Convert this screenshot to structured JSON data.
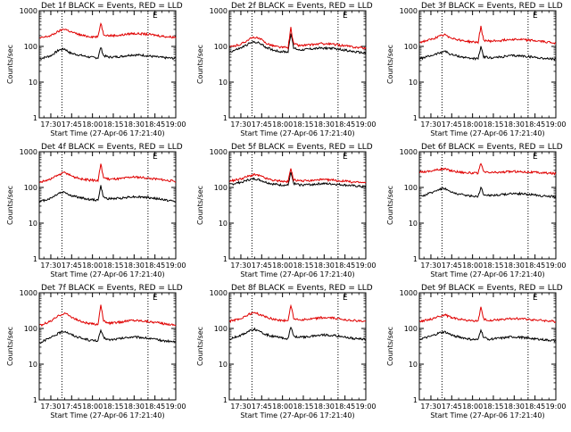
{
  "chart_data": [
    {
      "type": "line",
      "title": "Det 1f BLACK = Events, RED = LLD",
      "flag": "E",
      "ylabel": "Counts/sec",
      "xlabel": "Start Time (27-Apr-06 17:21:40)",
      "y_scale": "log",
      "ylim": [
        1,
        1000
      ],
      "y_ticks": [
        "1",
        "10",
        "100",
        "1000"
      ],
      "x_ticks": [
        "17:30",
        "17:45",
        "18:00",
        "18:15",
        "18:30",
        "18:45",
        "19:00"
      ],
      "xlim": [
        "17:21:40",
        "19:00"
      ],
      "vlines": [
        "17:38",
        "18:40"
      ],
      "series": [
        {
          "color": "#000000",
          "x": [
            "17:22",
            "17:30",
            "17:36",
            "17:40",
            "17:44",
            "17:48",
            "17:53",
            "17:58",
            "18:04",
            "18:06",
            "18:08",
            "18:12",
            "18:20",
            "18:28",
            "18:36",
            "18:44",
            "18:52",
            "19:00"
          ],
          "values": [
            45,
            55,
            80,
            85,
            65,
            60,
            55,
            50,
            48,
            95,
            55,
            50,
            52,
            58,
            57,
            52,
            48,
            46
          ]
        },
        {
          "color": "#e00000",
          "x": [
            "17:22",
            "17:30",
            "17:36",
            "17:40",
            "17:44",
            "17:48",
            "17:53",
            "17:58",
            "18:04",
            "18:06",
            "18:08",
            "18:12",
            "18:20",
            "18:28",
            "18:36",
            "18:44",
            "18:52",
            "19:00"
          ],
          "values": [
            170,
            200,
            270,
            310,
            260,
            230,
            200,
            190,
            185,
            460,
            220,
            200,
            205,
            230,
            225,
            210,
            190,
            180
          ]
        }
      ]
    },
    {
      "type": "line",
      "title": "Det 2f BLACK = Events, RED = LLD",
      "flag": "E",
      "ylabel": "Counts/sec",
      "xlabel": "Start Time (27-Apr-06 17:21:40)",
      "y_scale": "log",
      "ylim": [
        1,
        1000
      ],
      "y_ticks": [
        "1",
        "10",
        "100",
        "1000"
      ],
      "x_ticks": [
        "17:30",
        "17:45",
        "18:00",
        "18:15",
        "18:30",
        "18:45",
        "19:00"
      ],
      "xlim": [
        "17:21:40",
        "19:00"
      ],
      "vlines": [
        "17:38",
        "18:40"
      ],
      "series": [
        {
          "color": "#000000",
          "x": [
            "17:22",
            "17:30",
            "17:36",
            "17:40",
            "17:44",
            "17:48",
            "17:53",
            "17:58",
            "18:04",
            "18:06",
            "18:08",
            "18:12",
            "18:20",
            "18:28",
            "18:36",
            "18:44",
            "18:52",
            "19:00"
          ],
          "values": [
            70,
            90,
            120,
            135,
            120,
            95,
            80,
            72,
            70,
            240,
            90,
            80,
            85,
            90,
            88,
            80,
            70,
            65
          ]
        },
        {
          "color": "#e00000",
          "x": [
            "17:22",
            "17:30",
            "17:36",
            "17:40",
            "17:44",
            "17:48",
            "17:53",
            "17:58",
            "18:04",
            "18:06",
            "18:08",
            "18:12",
            "18:20",
            "18:28",
            "18:36",
            "18:44",
            "18:52",
            "19:00"
          ],
          "values": [
            95,
            115,
            160,
            180,
            160,
            125,
            105,
            95,
            92,
            330,
            120,
            105,
            110,
            120,
            115,
            105,
            95,
            90
          ]
        }
      ]
    },
    {
      "type": "line",
      "title": "Det 3f BLACK = Events, RED = LLD",
      "flag": "E",
      "ylabel": "Counts/sec",
      "xlabel": "Start Time (27-Apr-06 17:21:40)",
      "y_scale": "log",
      "ylim": [
        1,
        1000
      ],
      "y_ticks": [
        "1",
        "10",
        "100",
        "1000"
      ],
      "x_ticks": [
        "17:30",
        "17:45",
        "18:00",
        "18:15",
        "18:30",
        "18:45",
        "19:00"
      ],
      "xlim": [
        "17:21:40",
        "19:00"
      ],
      "vlines": [
        "17:38",
        "18:40"
      ],
      "series": [
        {
          "color": "#000000",
          "x": [
            "17:22",
            "17:30",
            "17:36",
            "17:40",
            "17:44",
            "17:48",
            "17:53",
            "17:58",
            "18:04",
            "18:06",
            "18:08",
            "18:12",
            "18:20",
            "18:28",
            "18:36",
            "18:44",
            "18:52",
            "19:00"
          ],
          "values": [
            45,
            55,
            65,
            75,
            60,
            55,
            50,
            47,
            45,
            95,
            52,
            48,
            50,
            55,
            54,
            50,
            46,
            44
          ]
        },
        {
          "color": "#e00000",
          "x": [
            "17:22",
            "17:30",
            "17:36",
            "17:40",
            "17:44",
            "17:48",
            "17:53",
            "17:58",
            "18:04",
            "18:06",
            "18:08",
            "18:12",
            "18:20",
            "18:28",
            "18:36",
            "18:44",
            "18:52",
            "19:00"
          ],
          "values": [
            130,
            155,
            190,
            210,
            180,
            160,
            145,
            135,
            130,
            360,
            150,
            140,
            145,
            160,
            155,
            145,
            135,
            125
          ]
        }
      ]
    },
    {
      "type": "line",
      "title": "Det 4f BLACK = Events, RED = LLD",
      "flag": "E",
      "ylabel": "Counts/sec",
      "xlabel": "Start Time (27-Apr-06 17:21:40)",
      "y_scale": "log",
      "ylim": [
        1,
        1000
      ],
      "y_ticks": [
        "1",
        "10",
        "100",
        "1000"
      ],
      "x_ticks": [
        "17:30",
        "17:45",
        "18:00",
        "18:15",
        "18:30",
        "18:45",
        "19:00"
      ],
      "xlim": [
        "17:21:40",
        "19:00"
      ],
      "vlines": [
        "17:38",
        "18:40"
      ],
      "series": [
        {
          "color": "#000000",
          "x": [
            "17:22",
            "17:30",
            "17:36",
            "17:40",
            "17:44",
            "17:48",
            "17:53",
            "17:58",
            "18:04",
            "18:06",
            "18:08",
            "18:12",
            "18:20",
            "18:28",
            "18:36",
            "18:44",
            "18:52",
            "19:00"
          ],
          "values": [
            40,
            50,
            70,
            75,
            60,
            55,
            50,
            46,
            44,
            110,
            52,
            48,
            50,
            55,
            54,
            50,
            45,
            40
          ]
        },
        {
          "color": "#e00000",
          "x": [
            "17:22",
            "17:30",
            "17:36",
            "17:40",
            "17:44",
            "17:48",
            "17:53",
            "17:58",
            "18:04",
            "18:06",
            "18:08",
            "18:12",
            "18:20",
            "18:28",
            "18:36",
            "18:44",
            "18:52",
            "19:00"
          ],
          "values": [
            140,
            170,
            230,
            260,
            220,
            190,
            170,
            160,
            155,
            450,
            190,
            170,
            175,
            195,
            190,
            175,
            160,
            150
          ]
        }
      ]
    },
    {
      "type": "line",
      "title": "Det 5f BLACK = Events, RED = LLD",
      "flag": "E",
      "ylabel": "Counts/sec",
      "xlabel": "Start Time (27-Apr-06 17:21:40)",
      "y_scale": "log",
      "ylim": [
        1,
        1000
      ],
      "y_ticks": [
        "1",
        "10",
        "100",
        "1000"
      ],
      "x_ticks": [
        "17:30",
        "17:45",
        "18:00",
        "18:15",
        "18:30",
        "18:45",
        "19:00"
      ],
      "xlim": [
        "17:21:40",
        "19:00"
      ],
      "vlines": [
        "17:38",
        "18:40"
      ],
      "series": [
        {
          "color": "#000000",
          "x": [
            "17:22",
            "17:30",
            "17:36",
            "17:40",
            "17:44",
            "17:48",
            "17:53",
            "17:58",
            "18:04",
            "18:06",
            "18:08",
            "18:12",
            "18:20",
            "18:28",
            "18:36",
            "18:44",
            "18:52",
            "19:00"
          ],
          "values": [
            120,
            140,
            165,
            175,
            160,
            140,
            125,
            118,
            115,
            260,
            130,
            118,
            120,
            128,
            125,
            118,
            110,
            105
          ]
        },
        {
          "color": "#e00000",
          "x": [
            "17:22",
            "17:30",
            "17:36",
            "17:40",
            "17:44",
            "17:48",
            "17:53",
            "17:58",
            "18:04",
            "18:06",
            "18:08",
            "18:12",
            "18:20",
            "18:28",
            "18:36",
            "18:44",
            "18:52",
            "19:00"
          ],
          "values": [
            150,
            175,
            210,
            230,
            210,
            180,
            160,
            150,
            145,
            340,
            165,
            150,
            155,
            165,
            160,
            150,
            140,
            135
          ]
        }
      ]
    },
    {
      "type": "line",
      "title": "Det 6f BLACK = Events, RED = LLD",
      "flag": "E",
      "ylabel": "Counts/sec",
      "xlabel": "Start Time (27-Apr-06 17:21:40)",
      "y_scale": "log",
      "ylim": [
        1,
        1000
      ],
      "y_ticks": [
        "1",
        "10",
        "100",
        "1000"
      ],
      "x_ticks": [
        "17:30",
        "17:45",
        "18:00",
        "18:15",
        "18:30",
        "18:45",
        "19:00"
      ],
      "xlim": [
        "17:21:40",
        "19:00"
      ],
      "vlines": [
        "17:38",
        "18:40"
      ],
      "series": [
        {
          "color": "#000000",
          "x": [
            "17:22",
            "17:30",
            "17:36",
            "17:40",
            "17:44",
            "17:48",
            "17:53",
            "17:58",
            "18:04",
            "18:06",
            "18:08",
            "18:12",
            "18:20",
            "18:28",
            "18:36",
            "18:44",
            "18:52",
            "19:00"
          ],
          "values": [
            55,
            70,
            90,
            95,
            75,
            68,
            62,
            58,
            56,
            100,
            64,
            60,
            62,
            68,
            66,
            62,
            57,
            55
          ]
        },
        {
          "color": "#e00000",
          "x": [
            "17:22",
            "17:30",
            "17:36",
            "17:40",
            "17:44",
            "17:48",
            "17:53",
            "17:58",
            "18:04",
            "18:06",
            "18:08",
            "18:12",
            "18:20",
            "18:28",
            "18:36",
            "18:44",
            "18:52",
            "19:00"
          ],
          "values": [
            270,
            290,
            320,
            330,
            300,
            280,
            265,
            255,
            250,
            470,
            270,
            260,
            265,
            280,
            275,
            265,
            255,
            245
          ]
        }
      ]
    },
    {
      "type": "line",
      "title": "Det 7f BLACK = Events, RED = LLD",
      "flag": "E",
      "ylabel": "Counts/sec",
      "xlabel": "Start Time (27-Apr-06 17:21:40)",
      "y_scale": "log",
      "ylim": [
        1,
        1000
      ],
      "y_ticks": [
        "1",
        "10",
        "100",
        "1000"
      ],
      "x_ticks": [
        "17:30",
        "17:45",
        "18:00",
        "18:15",
        "18:30",
        "18:45",
        "19:00"
      ],
      "xlim": [
        "17:21:40",
        "19:00"
      ],
      "vlines": [
        "17:38",
        "18:40"
      ],
      "series": [
        {
          "color": "#000000",
          "x": [
            "17:22",
            "17:30",
            "17:36",
            "17:40",
            "17:44",
            "17:48",
            "17:53",
            "17:58",
            "18:04",
            "18:06",
            "18:08",
            "18:12",
            "18:20",
            "18:28",
            "18:36",
            "18:44",
            "18:52",
            "19:00"
          ],
          "values": [
            40,
            55,
            75,
            85,
            70,
            60,
            52,
            47,
            45,
            90,
            55,
            48,
            52,
            58,
            56,
            50,
            45,
            42
          ]
        },
        {
          "color": "#e00000",
          "x": [
            "17:22",
            "17:30",
            "17:36",
            "17:40",
            "17:44",
            "17:48",
            "17:53",
            "17:58",
            "18:04",
            "18:06",
            "18:08",
            "18:12",
            "18:20",
            "18:28",
            "18:36",
            "18:44",
            "18:52",
            "19:00"
          ],
          "values": [
            120,
            160,
            230,
            270,
            220,
            180,
            150,
            135,
            130,
            480,
            160,
            140,
            150,
            170,
            165,
            150,
            135,
            125
          ]
        }
      ]
    },
    {
      "type": "line",
      "title": "Det 8f BLACK = Events, RED = LLD",
      "flag": "E",
      "ylabel": "Counts/sec",
      "xlabel": "Start Time (27-Apr-06 17:21:40)",
      "y_scale": "log",
      "ylim": [
        1,
        1000
      ],
      "y_ticks": [
        "1",
        "10",
        "100",
        "1000"
      ],
      "x_ticks": [
        "17:30",
        "17:45",
        "18:00",
        "18:15",
        "18:30",
        "18:45",
        "19:00"
      ],
      "xlim": [
        "17:21:40",
        "19:00"
      ],
      "vlines": [
        "17:38",
        "18:40"
      ],
      "series": [
        {
          "color": "#000000",
          "x": [
            "17:22",
            "17:30",
            "17:36",
            "17:40",
            "17:44",
            "17:48",
            "17:53",
            "17:58",
            "18:04",
            "18:06",
            "18:08",
            "18:12",
            "18:20",
            "18:28",
            "18:36",
            "18:44",
            "18:52",
            "19:00"
          ],
          "values": [
            50,
            65,
            85,
            95,
            78,
            68,
            60,
            55,
            52,
            110,
            62,
            56,
            60,
            66,
            64,
            58,
            52,
            50
          ]
        },
        {
          "color": "#e00000",
          "x": [
            "17:22",
            "17:30",
            "17:36",
            "17:40",
            "17:44",
            "17:48",
            "17:53",
            "17:58",
            "18:04",
            "18:06",
            "18:08",
            "18:12",
            "18:20",
            "18:28",
            "18:36",
            "18:44",
            "18:52",
            "19:00"
          ],
          "values": [
            160,
            190,
            250,
            280,
            240,
            210,
            185,
            170,
            165,
            460,
            195,
            175,
            180,
            200,
            195,
            180,
            165,
            155
          ]
        }
      ]
    },
    {
      "type": "line",
      "title": "Det 9f BLACK = Events, RED = LLD",
      "flag": "E",
      "ylabel": "Counts/sec",
      "xlabel": "Start Time (27-Apr-06 17:21:40)",
      "y_scale": "log",
      "ylim": [
        1,
        1000
      ],
      "y_ticks": [
        "1",
        "10",
        "100",
        "1000"
      ],
      "x_ticks": [
        "17:30",
        "17:45",
        "18:00",
        "18:15",
        "18:30",
        "18:45",
        "19:00"
      ],
      "xlim": [
        "17:21:40",
        "19:00"
      ],
      "vlines": [
        "17:38",
        "18:40"
      ],
      "series": [
        {
          "color": "#000000",
          "x": [
            "17:22",
            "17:30",
            "17:36",
            "17:40",
            "17:44",
            "17:48",
            "17:53",
            "17:58",
            "18:04",
            "18:06",
            "18:08",
            "18:12",
            "18:20",
            "18:28",
            "18:36",
            "18:44",
            "18:52",
            "19:00"
          ],
          "values": [
            50,
            60,
            75,
            80,
            68,
            60,
            55,
            50,
            48,
            95,
            56,
            50,
            53,
            58,
            56,
            52,
            48,
            45
          ]
        },
        {
          "color": "#e00000",
          "x": [
            "17:22",
            "17:30",
            "17:36",
            "17:40",
            "17:44",
            "17:48",
            "17:53",
            "17:58",
            "18:04",
            "18:06",
            "18:08",
            "18:12",
            "18:20",
            "18:28",
            "18:36",
            "18:44",
            "18:52",
            "19:00"
          ],
          "values": [
            160,
            180,
            220,
            240,
            210,
            190,
            175,
            165,
            160,
            380,
            180,
            170,
            175,
            190,
            185,
            175,
            165,
            155
          ]
        }
      ]
    }
  ]
}
